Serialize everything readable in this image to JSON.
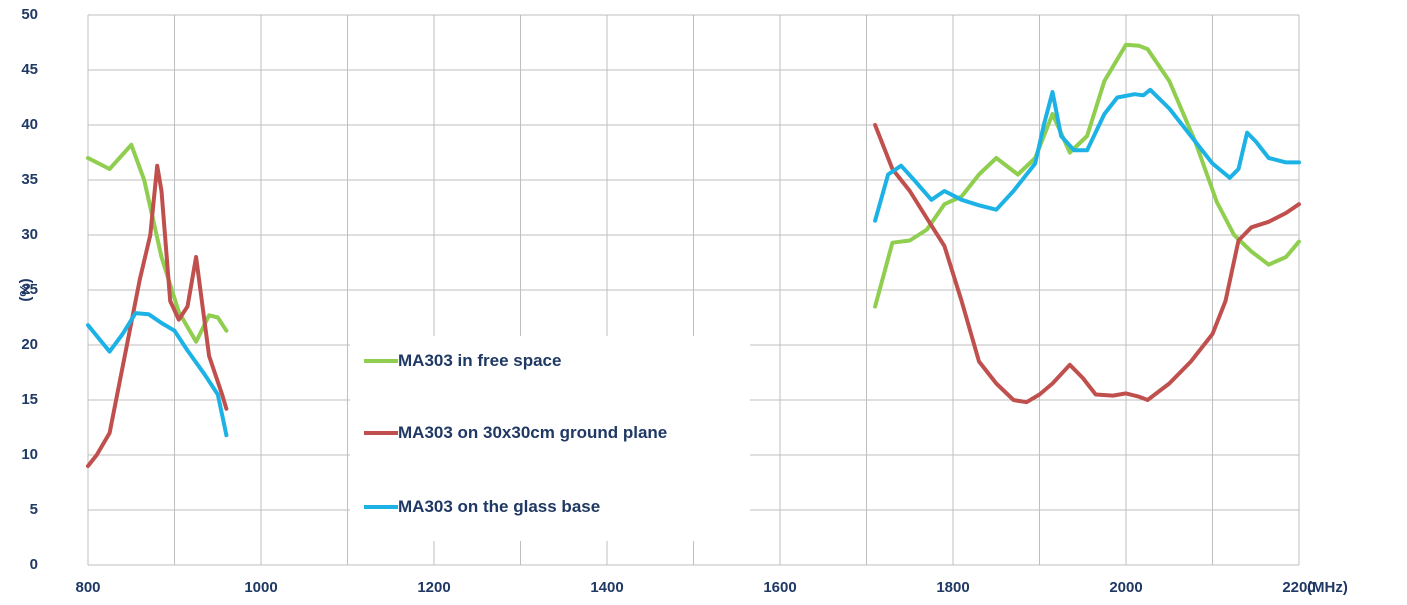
{
  "chart_data": {
    "type": "line",
    "y_label": "(%)",
    "x_label": "(MHz)",
    "xlim": [
      800,
      2200
    ],
    "xticks": [
      800,
      1000,
      1200,
      1400,
      1600,
      1800,
      2000,
      2200
    ],
    "minor_xticks": [
      900,
      1100,
      1300,
      1500,
      1700,
      1900,
      2100
    ],
    "ylim": [
      0,
      50
    ],
    "yticks": [
      0,
      5,
      10,
      15,
      20,
      25,
      30,
      35,
      40,
      45,
      50
    ],
    "grid": true,
    "legend": "center",
    "series": [
      {
        "name": "MA303 in free space",
        "color": "#8fce4f",
        "x": [
          800,
          825,
          850,
          865,
          885,
          905,
          925,
          940,
          950,
          960,
          null,
          1710,
          1730,
          1750,
          1770,
          1790,
          1810,
          1830,
          1850,
          1875,
          1895,
          1915,
          1935,
          1955,
          1975,
          2000,
          2015,
          2025,
          2050,
          2080,
          2105,
          2125,
          2145,
          2165,
          2185,
          2200
        ],
        "values": [
          37,
          36,
          38.2,
          35,
          28,
          23,
          20.3,
          22.7,
          22.5,
          21.3,
          null,
          23.5,
          29.3,
          29.5,
          30.5,
          32.8,
          33.5,
          35.5,
          37,
          35.5,
          37,
          41,
          37.5,
          39,
          44,
          47.3,
          47.2,
          46.9,
          44,
          38.5,
          33,
          30,
          28.5,
          27.3,
          28,
          29.4
        ]
      },
      {
        "name": "MA303 on 30x30cm ground plane",
        "color": "#c0504d",
        "x": [
          800,
          810,
          825,
          840,
          860,
          872,
          880,
          885,
          895,
          905,
          915,
          925,
          930,
          940,
          955,
          960,
          null,
          1710,
          1730,
          1750,
          1770,
          1790,
          1810,
          1830,
          1850,
          1870,
          1885,
          1900,
          1915,
          1935,
          1950,
          1965,
          1985,
          2000,
          2015,
          2025,
          2050,
          2075,
          2100,
          2115,
          2130,
          2145,
          2165,
          2185,
          2200
        ],
        "values": [
          9,
          10,
          12,
          18,
          26,
          30,
          36.3,
          34,
          24,
          22.3,
          23.5,
          28,
          25,
          19,
          15.5,
          14.2,
          null,
          40,
          36,
          34,
          31.5,
          29,
          24,
          18.5,
          16.5,
          15,
          14.8,
          15.5,
          16.5,
          18.2,
          17,
          15.5,
          15.4,
          15.6,
          15.3,
          15,
          16.5,
          18.5,
          21,
          24,
          29.5,
          30.7,
          31.2,
          32,
          32.8
        ]
      },
      {
        "name": "MA303 on the glass base",
        "color": "#1cb2e6",
        "x": [
          800,
          825,
          840,
          855,
          870,
          885,
          900,
          915,
          935,
          950,
          960,
          null,
          1710,
          1725,
          1740,
          1755,
          1775,
          1790,
          1810,
          1830,
          1850,
          1870,
          1895,
          1905,
          1915,
          1925,
          1940,
          1955,
          1975,
          1990,
          2010,
          2020,
          2028,
          2050,
          2080,
          2100,
          2120,
          2130,
          2140,
          2150,
          2165,
          2185,
          2200
        ],
        "values": [
          21.8,
          19.4,
          21,
          22.9,
          22.8,
          22,
          21.3,
          19.5,
          17.3,
          15.5,
          11.8,
          null,
          31.3,
          35.5,
          36.3,
          35,
          33.2,
          34,
          33.2,
          32.7,
          32.3,
          34,
          36.5,
          40,
          43,
          39,
          37.7,
          37.7,
          41,
          42.5,
          42.8,
          42.7,
          43.2,
          41.5,
          38.5,
          36.5,
          35.2,
          36,
          39.3,
          38.5,
          37,
          36.6,
          36.6
        ]
      }
    ]
  }
}
